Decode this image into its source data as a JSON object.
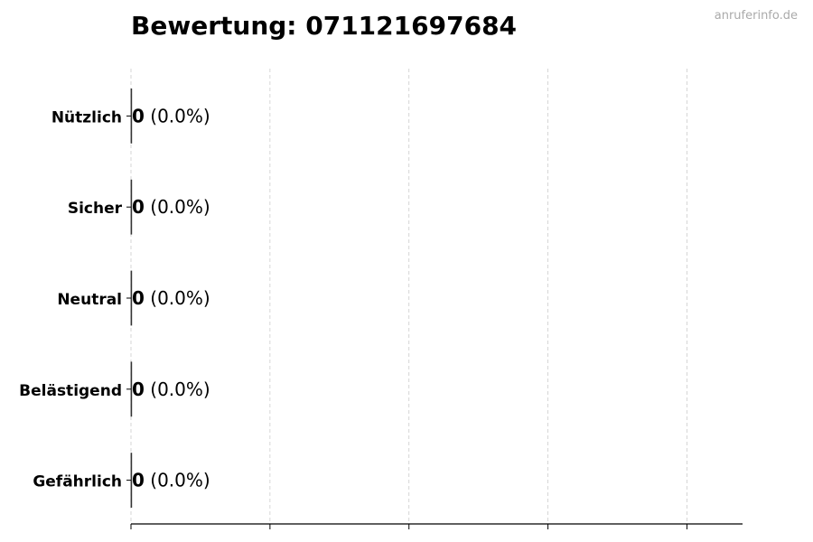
{
  "watermark": "anruferinfo.de",
  "chart_data": {
    "type": "bar",
    "orientation": "horizontal",
    "title": "Bewertung: 071121697684",
    "categories": [
      "Nützlich",
      "Sicher",
      "Neutral",
      "Belästigend",
      "Gefährlich"
    ],
    "values": [
      0,
      0,
      0,
      0,
      0
    ],
    "data_labels": [
      {
        "count": "0",
        "pct": "(0.0%)"
      },
      {
        "count": "0",
        "pct": "(0.0%)"
      },
      {
        "count": "0",
        "pct": "(0.0%)"
      },
      {
        "count": "0",
        "pct": "(0.0%)"
      },
      {
        "count": "0",
        "pct": "(0.0%)"
      }
    ],
    "xlabel": "",
    "ylabel": "",
    "xlim": [
      0,
      4.4
    ],
    "x_ticks": [
      0,
      1,
      2,
      3,
      4
    ],
    "x_tick_labels_shown": false,
    "grid": "x-dashed",
    "bar_edge_color": "#333333"
  }
}
